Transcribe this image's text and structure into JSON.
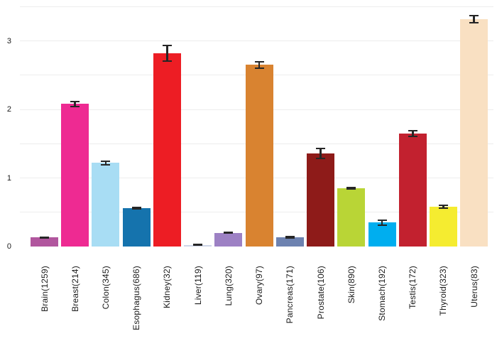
{
  "chart_data": {
    "type": "bar",
    "title": "",
    "xlabel": "",
    "ylabel": "",
    "categories": [
      "Brain(1259)",
      "Breast(214)",
      "Colon(345)",
      "Esophagus(686)",
      "Kidney(32)",
      "Liver(119)",
      "Lung(320)",
      "Ovary(97)",
      "Pancreas(171)",
      "Prostate(106)",
      "Skin(890)",
      "Stomach(192)",
      "Testis(172)",
      "Thyroid(323)",
      "Uterus(83)"
    ],
    "values": [
      0.13,
      2.08,
      1.22,
      0.56,
      2.82,
      0.025,
      0.2,
      2.65,
      0.135,
      1.36,
      0.85,
      0.35,
      1.65,
      0.58,
      3.32
    ],
    "errors": [
      0.015,
      0.045,
      0.035,
      0.02,
      0.12,
      0.012,
      0.018,
      0.055,
      0.018,
      0.08,
      0.025,
      0.045,
      0.05,
      0.035,
      0.065
    ],
    "bar_colors": [
      "#b1569e",
      "#ee2a92",
      "#a8ddf4",
      "#1573ad",
      "#ed1d24",
      "#ced6e8",
      "#9d81c4",
      "#d98330",
      "#6d82b0",
      "#8e1b19",
      "#b9d536",
      "#00aeef",
      "#c2212f",
      "#f5ec30",
      "#f9e0c2"
    ],
    "yticks": [
      0,
      1,
      2,
      3
    ],
    "ylim": [
      0,
      3.5
    ],
    "grid": {
      "visible": true,
      "step": 0.5,
      "color": "#ededed"
    },
    "error_bar_color": "#262626",
    "background_color": "#ffffff",
    "tick_label_color": "#1a1a1a",
    "x_tick_rotation_degrees": 90,
    "legend": null
  }
}
